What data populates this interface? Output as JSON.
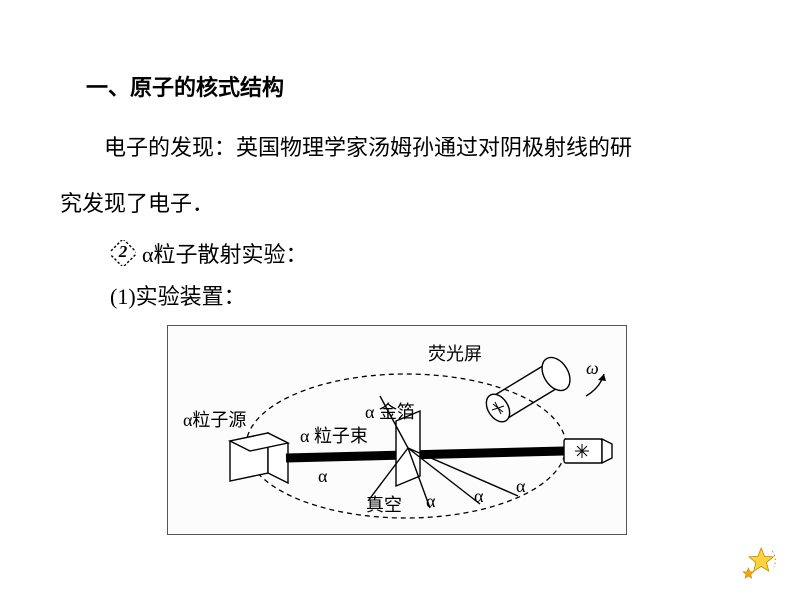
{
  "heading": "一、原子的核式结构",
  "paragraph1": "电子的发现：英国物理学家汤姆孙通过对阴极射线的研",
  "paragraph1b": "究发现了电子．",
  "bullet_number": "2",
  "bullet_text": "α粒子散射实验：",
  "sub_line": "(1)实验装置：",
  "figure": {
    "label_screen": "荧光屏",
    "label_omega": "ω",
    "label_source": "α粒子源",
    "label_foil_a": "α",
    "label_foil": "金箔",
    "label_beam_a": "α",
    "label_beam": "粒子束",
    "label_a1": "α",
    "label_a2": "α",
    "label_a3": "α",
    "label_a4": "α",
    "label_vacuum": "真空",
    "colors": {
      "line": "#000000",
      "fill_white": "#ffffff",
      "fill_black": "#000000"
    }
  },
  "star_colors": {
    "big": "#ffd23f",
    "small": "#ffa500",
    "stroke": "#c08a00"
  }
}
